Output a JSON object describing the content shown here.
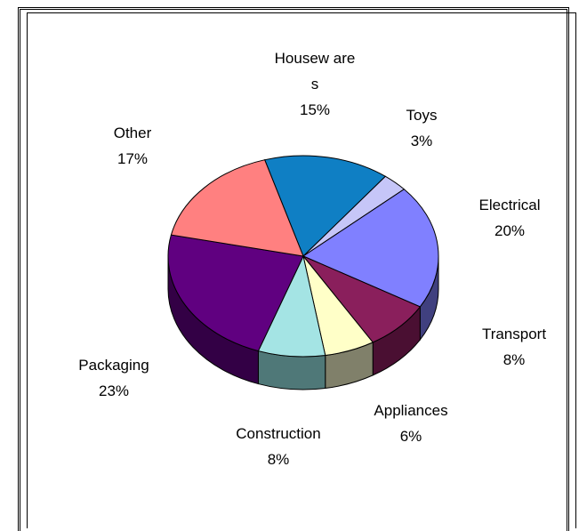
{
  "chart_data": {
    "type": "pie",
    "three_d": true,
    "legend": "none",
    "slices": [
      {
        "label": [
          "Housew are",
          "s"
        ],
        "value": 15,
        "pct_text": "15%",
        "color": "#0f7fc4",
        "side": "#08507d"
      },
      {
        "label": [
          "Toys"
        ],
        "value": 3,
        "pct_text": "3%",
        "color": "#c6c6f8",
        "side": "#7f7fb0"
      },
      {
        "label": [
          "Electrical"
        ],
        "value": 20,
        "pct_text": "20%",
        "color": "#8080ff",
        "side": "#40407f"
      },
      {
        "label": [
          "Transport"
        ],
        "value": 8,
        "pct_text": "8%",
        "color": "#8a1f5c",
        "side": "#4a0f32"
      },
      {
        "label": [
          "Appliances"
        ],
        "value": 6,
        "pct_text": "6%",
        "color": "#ffffc8",
        "side": "#80806a"
      },
      {
        "label": [
          "Construction"
        ],
        "value": 8,
        "pct_text": "8%",
        "color": "#a4e4e4",
        "side": "#4f7878"
      },
      {
        "label": [
          "Packaging"
        ],
        "value": 23,
        "pct_text": "23%",
        "color": "#600080",
        "side": "#330045"
      },
      {
        "label": [
          "Other"
        ],
        "value": 17,
        "pct_text": "17%",
        "color": "#ff8080",
        "side": "#a04848"
      }
    ]
  }
}
